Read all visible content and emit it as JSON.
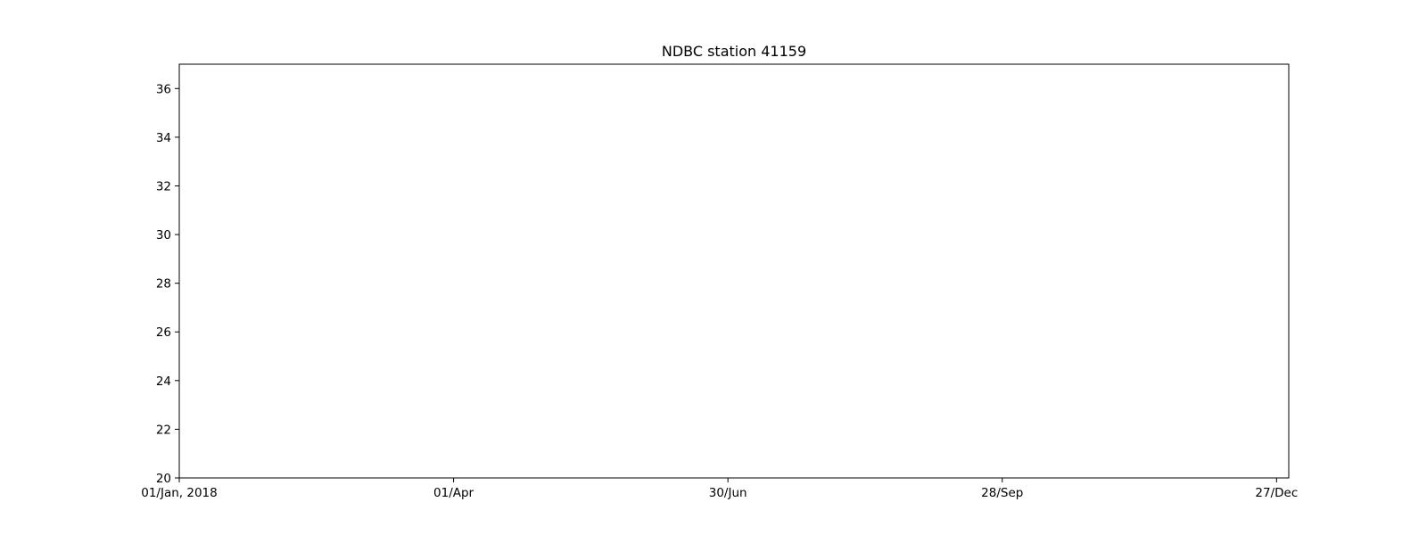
{
  "chart_data": {
    "type": "line",
    "title": "NDBC station 41159",
    "xlabel": "",
    "ylabel": "",
    "x_axis": {
      "ticks": [
        {
          "date": "2018-01-01",
          "label": "01/Jan, 2018"
        },
        {
          "date": "2018-04-01",
          "label": "01/Apr"
        },
        {
          "date": "2018-06-30",
          "label": "30/Jun"
        },
        {
          "date": "2018-09-28",
          "label": "28/Sep"
        },
        {
          "date": "2018-12-27",
          "label": "27/Dec"
        }
      ],
      "range": [
        "2018-01-01",
        "2018-12-31"
      ]
    },
    "y_axis": {
      "ticks": [
        20,
        22,
        24,
        26,
        28,
        30,
        32,
        34,
        36
      ],
      "range": [
        20,
        37
      ]
    },
    "grid": false,
    "series": [],
    "colors": {
      "axes": "#000000",
      "background": "#ffffff"
    }
  }
}
